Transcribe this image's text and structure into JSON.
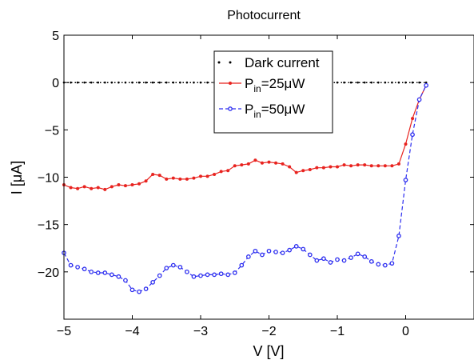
{
  "chart_data": {
    "type": "line",
    "title": "Photocurrent",
    "xlabel": "V [V]",
    "ylabel": "I [μA]",
    "xlim": [
      -5,
      1
    ],
    "ylim": [
      -25,
      5
    ],
    "xticks": [
      -5,
      -4,
      -3,
      -2,
      -1,
      0
    ],
    "xtick_labels": [
      "−5",
      "−4",
      "−3",
      "−2",
      "−1",
      "0"
    ],
    "yticks": [
      5,
      0,
      -5,
      -10,
      -15,
      -20
    ],
    "ytick_labels": [
      "5",
      "0",
      "−5",
      "−10",
      "−15",
      "−20"
    ],
    "grid": false,
    "legend_position": "top-center",
    "series": [
      {
        "name": "Dark current",
        "name_main": "Dark current",
        "name_sub": "",
        "name_tail": "",
        "color": "#000000",
        "style": "dotted",
        "marker": "dot",
        "x": [
          -5.0,
          -4.9,
          -4.8,
          -4.7,
          -4.6,
          -4.5,
          -4.4,
          -4.3,
          -4.2,
          -4.1,
          -4.0,
          -3.9,
          -3.8,
          -3.7,
          -3.6,
          -3.5,
          -3.4,
          -3.3,
          -3.2,
          -3.1,
          -3.0,
          -2.9,
          -2.8,
          -2.7,
          -2.6,
          -2.5,
          -2.4,
          -2.3,
          -2.2,
          -2.1,
          -2.0,
          -1.9,
          -1.8,
          -1.7,
          -1.6,
          -1.5,
          -1.4,
          -1.3,
          -1.2,
          -1.1,
          -1.0,
          -0.9,
          -0.8,
          -0.7,
          -0.6,
          -0.5,
          -0.4,
          -0.3,
          -0.2,
          -0.1,
          0.0,
          0.1,
          0.2,
          0.3
        ],
        "y": [
          0,
          0,
          0,
          0,
          0,
          0,
          0,
          0,
          0,
          0,
          0,
          0,
          0,
          0,
          0,
          0,
          0,
          0,
          0,
          0,
          0,
          0,
          0,
          0,
          0,
          0,
          0,
          0,
          0,
          0,
          0,
          0,
          0,
          0,
          0,
          0,
          0,
          0,
          0,
          0,
          0,
          0,
          0,
          0,
          0,
          0,
          0,
          0,
          0,
          0,
          0,
          0,
          0,
          0
        ]
      },
      {
        "name": "Pin=25μW",
        "name_main": "P",
        "name_sub": "in",
        "name_tail": "=25μW",
        "color": "#e8231f",
        "style": "solid",
        "marker": "dot",
        "x": [
          -5.0,
          -4.9,
          -4.8,
          -4.7,
          -4.6,
          -4.5,
          -4.4,
          -4.3,
          -4.2,
          -4.1,
          -4.0,
          -3.9,
          -3.8,
          -3.7,
          -3.6,
          -3.5,
          -3.4,
          -3.3,
          -3.2,
          -3.1,
          -3.0,
          -2.9,
          -2.8,
          -2.7,
          -2.6,
          -2.5,
          -2.4,
          -2.3,
          -2.2,
          -2.1,
          -2.0,
          -1.9,
          -1.8,
          -1.7,
          -1.6,
          -1.5,
          -1.4,
          -1.3,
          -1.2,
          -1.1,
          -1.0,
          -0.9,
          -0.8,
          -0.7,
          -0.6,
          -0.5,
          -0.4,
          -0.3,
          -0.2,
          -0.1,
          0.0,
          0.1,
          0.2,
          0.3
        ],
        "y": [
          -10.8,
          -11.1,
          -11.2,
          -11.0,
          -11.2,
          -11.1,
          -11.3,
          -11.0,
          -10.8,
          -10.9,
          -10.8,
          -10.7,
          -10.4,
          -9.7,
          -9.8,
          -10.2,
          -10.1,
          -10.2,
          -10.2,
          -10.1,
          -9.9,
          -9.9,
          -9.7,
          -9.4,
          -9.3,
          -8.8,
          -8.7,
          -8.6,
          -8.2,
          -8.5,
          -8.4,
          -8.5,
          -8.6,
          -8.9,
          -9.5,
          -9.3,
          -9.2,
          -9.0,
          -9.0,
          -8.9,
          -8.9,
          -8.7,
          -8.8,
          -8.7,
          -8.7,
          -8.8,
          -8.8,
          -8.8,
          -8.8,
          -8.6,
          -6.5,
          -3.8,
          -1.8,
          -0.3
        ]
      },
      {
        "name": "Pin=50μW",
        "name_main": "P",
        "name_sub": "in",
        "name_tail": "=50μW",
        "color": "#2d2ef0",
        "style": "dashed",
        "marker": "circle",
        "x": [
          -5.0,
          -4.9,
          -4.8,
          -4.7,
          -4.6,
          -4.5,
          -4.4,
          -4.3,
          -4.2,
          -4.1,
          -4.0,
          -3.9,
          -3.8,
          -3.7,
          -3.6,
          -3.5,
          -3.4,
          -3.3,
          -3.2,
          -3.1,
          -3.0,
          -2.9,
          -2.8,
          -2.7,
          -2.6,
          -2.5,
          -2.4,
          -2.3,
          -2.2,
          -2.1,
          -2.0,
          -1.9,
          -1.8,
          -1.7,
          -1.6,
          -1.5,
          -1.4,
          -1.3,
          -1.2,
          -1.1,
          -1.0,
          -0.9,
          -0.8,
          -0.7,
          -0.6,
          -0.5,
          -0.4,
          -0.3,
          -0.2,
          -0.1,
          0.0,
          0.1,
          0.2,
          0.3
        ],
        "y": [
          -18.0,
          -19.3,
          -19.5,
          -19.7,
          -20.0,
          -20.1,
          -20.1,
          -20.3,
          -20.5,
          -20.9,
          -21.9,
          -22.1,
          -21.8,
          -21.1,
          -20.4,
          -19.6,
          -19.3,
          -19.5,
          -20.0,
          -20.5,
          -20.4,
          -20.3,
          -20.3,
          -20.2,
          -20.3,
          -20.1,
          -19.3,
          -18.4,
          -17.8,
          -18.2,
          -17.8,
          -17.9,
          -18.0,
          -17.7,
          -17.3,
          -17.6,
          -18.2,
          -18.8,
          -18.6,
          -19.0,
          -18.7,
          -18.8,
          -18.5,
          -18.1,
          -18.4,
          -18.9,
          -19.2,
          -19.3,
          -19.1,
          -16.2,
          -10.3,
          -5.5,
          -1.8,
          -0.3
        ]
      }
    ]
  }
}
